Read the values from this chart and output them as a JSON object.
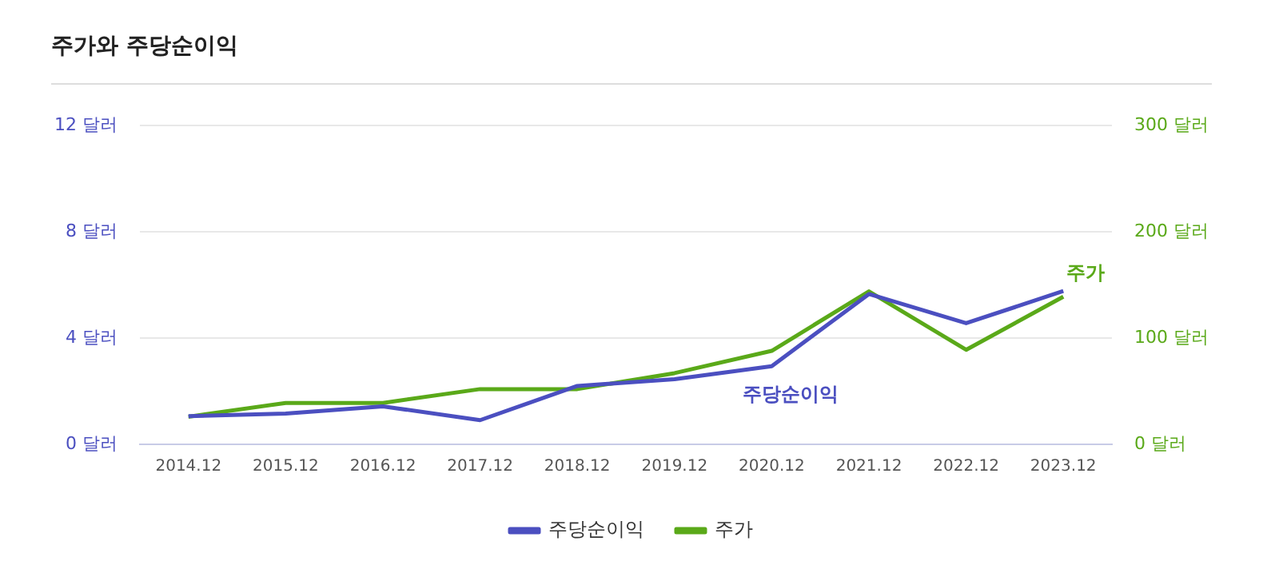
{
  "chart_data": {
    "type": "line",
    "title": "주가와 주당순이익",
    "categories": [
      "2014.12",
      "2015.12",
      "2016.12",
      "2017.12",
      "2018.12",
      "2019.12",
      "2020.12",
      "2021.12",
      "2022.12",
      "2023.12"
    ],
    "series": [
      {
        "name": "주당순이익",
        "color": "#4b4fc0",
        "values": [
          1.06,
          1.16,
          1.43,
          0.91,
          2.2,
          2.45,
          2.94,
          5.66,
          4.56,
          5.77
        ]
      },
      {
        "name": "주가",
        "color": "#5aa919",
        "axis": "y2",
        "values": [
          26,
          39,
          39,
          52,
          52,
          67,
          88,
          144,
          89,
          139
        ]
      }
    ],
    "ylim": [
      0,
      12
    ],
    "yticks": [
      {
        "value": 0,
        "label": "0 달러"
      },
      {
        "value": 4,
        "label": "4 달러"
      },
      {
        "value": 8,
        "label": "8 달러"
      },
      {
        "value": 12,
        "label": "12 달러"
      }
    ],
    "y2lim": [
      0,
      300
    ],
    "y2ticks": [
      {
        "value": 0,
        "label": "0 달러"
      },
      {
        "value": 100,
        "label": "100 달러"
      },
      {
        "value": 200,
        "label": "200 달러"
      },
      {
        "value": 300,
        "label": "300 달러"
      }
    ],
    "annotations": [
      "주당순이익",
      "주가"
    ],
    "grid": "y",
    "legend": "bottom",
    "marker": "none",
    "line_style": "solid"
  }
}
